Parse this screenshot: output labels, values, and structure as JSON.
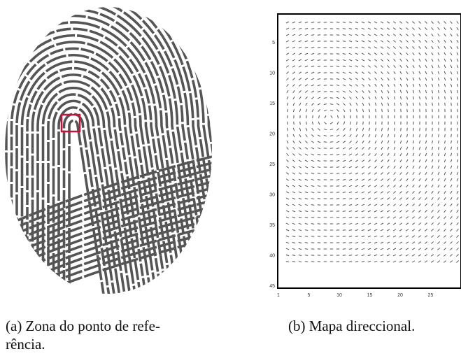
{
  "figures": [
    {
      "caption_lines": [
        "(a) Zona do ponto de refe-",
        "rência."
      ]
    },
    {
      "caption_lines": [
        "(b) Mapa direccional."
      ],
      "y_tick_labels": [
        5,
        10,
        15,
        20,
        25,
        30,
        35,
        40,
        45
      ],
      "x_tick_labels": [
        1,
        5,
        10,
        15,
        20,
        25
      ]
    }
  ]
}
